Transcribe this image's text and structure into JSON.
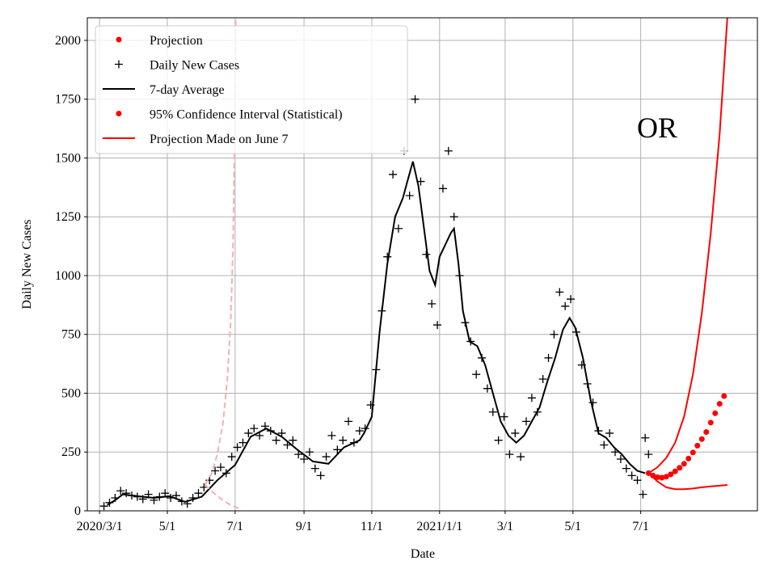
{
  "chart_data": {
    "type": "scatter-line",
    "xlabel": "Date",
    "ylabel": "Daily New Cases",
    "annotation": "OR",
    "xlim": [
      "2020-02-19",
      "2021-10-14"
    ],
    "xticks": [
      {
        "value": "2020-03-01",
        "label": "2020/3/1"
      },
      {
        "value": "2020-05-01",
        "label": "5/1"
      },
      {
        "value": "2020-07-01",
        "label": "7/1"
      },
      {
        "value": "2020-09-01",
        "label": "9/1"
      },
      {
        "value": "2020-11-01",
        "label": "11/1"
      },
      {
        "value": "2021-01-01",
        "label": "2021/1/1"
      },
      {
        "value": "2021-03-01",
        "label": "3/1"
      },
      {
        "value": "2021-05-01",
        "label": "5/1"
      },
      {
        "value": "2021-07-01",
        "label": "7/1"
      }
    ],
    "ylim": [
      0,
      2096
    ],
    "yticks": [
      0,
      250,
      500,
      750,
      1000,
      1250,
      1500,
      1750,
      2000
    ],
    "grid": true,
    "legend": "upper left",
    "series": [
      {
        "name": "Projection",
        "color": "#ff0000",
        "style": "dot",
        "x": [
          "2021-07-08",
          "2021-07-12",
          "2021-07-16",
          "2021-07-20",
          "2021-07-24",
          "2021-07-28",
          "2021-08-01",
          "2021-08-05",
          "2021-08-09",
          "2021-08-13",
          "2021-08-17",
          "2021-08-21",
          "2021-08-25",
          "2021-08-29",
          "2021-09-02",
          "2021-09-06",
          "2021-09-10",
          "2021-09-14"
        ],
        "values": [
          160,
          150,
          143,
          141,
          145,
          155,
          168,
          183,
          200,
          222,
          248,
          277,
          305,
          335,
          375,
          415,
          455,
          488
        ]
      },
      {
        "name": "Daily New Cases",
        "color": "#000000",
        "style": "plus",
        "x": [
          "2020-03-05",
          "2020-03-10",
          "2020-03-15",
          "2020-03-20",
          "2020-03-25",
          "2020-03-30",
          "2020-04-04",
          "2020-04-09",
          "2020-04-14",
          "2020-04-19",
          "2020-04-24",
          "2020-04-29",
          "2020-05-04",
          "2020-05-09",
          "2020-05-14",
          "2020-05-19",
          "2020-05-24",
          "2020-05-29",
          "2020-06-03",
          "2020-06-08",
          "2020-06-13",
          "2020-06-18",
          "2020-06-23",
          "2020-06-28",
          "2020-07-03",
          "2020-07-08",
          "2020-07-13",
          "2020-07-18",
          "2020-07-23",
          "2020-07-28",
          "2020-08-02",
          "2020-08-07",
          "2020-08-12",
          "2020-08-17",
          "2020-08-22",
          "2020-08-27",
          "2020-09-01",
          "2020-09-06",
          "2020-09-11",
          "2020-09-16",
          "2020-09-21",
          "2020-09-26",
          "2020-10-01",
          "2020-10-06",
          "2020-10-11",
          "2020-10-16",
          "2020-10-21",
          "2020-10-26",
          "2020-10-31",
          "2020-11-05",
          "2020-11-10",
          "2020-11-15",
          "2020-11-20",
          "2020-11-25",
          "2020-11-30",
          "2020-12-05",
          "2020-12-10",
          "2020-12-15",
          "2020-12-20",
          "2020-12-25",
          "2020-12-30",
          "2021-01-04",
          "2021-01-09",
          "2021-01-14",
          "2021-01-19",
          "2021-01-24",
          "2021-01-29",
          "2021-02-03",
          "2021-02-08",
          "2021-02-13",
          "2021-02-18",
          "2021-02-23",
          "2021-02-28",
          "2021-03-05",
          "2021-03-10",
          "2021-03-15",
          "2021-03-20",
          "2021-03-25",
          "2021-03-30",
          "2021-04-04",
          "2021-04-09",
          "2021-04-14",
          "2021-04-19",
          "2021-04-24",
          "2021-04-29",
          "2021-05-04",
          "2021-05-09",
          "2021-05-14",
          "2021-05-19",
          "2021-05-24",
          "2021-05-29",
          "2021-06-03",
          "2021-06-08",
          "2021-06-13",
          "2021-06-18",
          "2021-06-23",
          "2021-06-28",
          "2021-07-03",
          "2021-07-05",
          "2021-07-08"
        ],
        "values": [
          20,
          35,
          55,
          85,
          75,
          65,
          60,
          50,
          70,
          45,
          60,
          75,
          55,
          65,
          40,
          30,
          55,
          75,
          100,
          130,
          170,
          185,
          160,
          230,
          270,
          290,
          330,
          350,
          320,
          360,
          340,
          300,
          330,
          280,
          300,
          240,
          220,
          250,
          180,
          150,
          230,
          320,
          260,
          300,
          380,
          290,
          340,
          350,
          450,
          600,
          850,
          1080,
          1430,
          1200,
          1530,
          1340,
          1750,
          1400,
          1090,
          880,
          790,
          1370,
          1530,
          1250,
          1000,
          800,
          720,
          580,
          650,
          520,
          420,
          300,
          400,
          240,
          330,
          230,
          380,
          480,
          420,
          560,
          650,
          750,
          930,
          870,
          900,
          760,
          620,
          540,
          460,
          340,
          280,
          330,
          250,
          220,
          180,
          150,
          130,
          70,
          310,
          240
        ]
      },
      {
        "name": "7-day Average",
        "color": "#000000",
        "style": "line",
        "x": [
          "2020-03-08",
          "2020-03-15",
          "2020-03-22",
          "2020-04-05",
          "2020-04-19",
          "2020-05-03",
          "2020-05-17",
          "2020-06-01",
          "2020-06-15",
          "2020-07-01",
          "2020-07-15",
          "2020-07-29",
          "2020-08-12",
          "2020-08-26",
          "2020-09-09",
          "2020-09-23",
          "2020-10-07",
          "2020-10-21",
          "2020-10-25",
          "2020-11-01",
          "2020-11-08",
          "2020-11-15",
          "2020-11-22",
          "2020-11-29",
          "2020-12-03",
          "2020-12-08",
          "2020-12-13",
          "2020-12-18",
          "2020-12-23",
          "2020-12-28",
          "2021-01-01",
          "2021-01-06",
          "2021-01-11",
          "2021-01-14",
          "2021-01-18",
          "2021-01-22",
          "2021-01-28",
          "2021-02-04",
          "2021-02-11",
          "2021-02-18",
          "2021-02-25",
          "2021-03-04",
          "2021-03-11",
          "2021-03-18",
          "2021-03-25",
          "2021-04-01",
          "2021-04-08",
          "2021-04-15",
          "2021-04-22",
          "2021-04-28",
          "2021-05-03",
          "2021-05-10",
          "2021-05-17",
          "2021-05-24",
          "2021-05-31",
          "2021-06-07",
          "2021-06-14",
          "2021-06-21",
          "2021-06-28",
          "2021-07-05"
        ],
        "values": [
          25,
          45,
          70,
          62,
          55,
          62,
          38,
          60,
          130,
          195,
          315,
          350,
          315,
          260,
          210,
          200,
          270,
          300,
          330,
          400,
          760,
          1050,
          1250,
          1330,
          1400,
          1485,
          1380,
          1200,
          1020,
          960,
          1080,
          1130,
          1180,
          1200,
          1050,
          850,
          720,
          700,
          620,
          500,
          380,
          320,
          290,
          320,
          380,
          440,
          550,
          650,
          770,
          820,
          780,
          650,
          470,
          330,
          310,
          270,
          240,
          200,
          170,
          160
        ]
      },
      {
        "name": "95% Confidence Interval (Statistical)",
        "color": "#ff0000",
        "style": "dot",
        "x": [],
        "values": []
      },
      {
        "name": "Projection Made on June 7",
        "color": "#ff0000",
        "style": "line",
        "x": [
          "2021-07-08",
          "2021-07-16",
          "2021-07-24",
          "2021-08-01",
          "2021-08-09",
          "2021-08-17",
          "2021-08-25",
          "2021-09-02",
          "2021-09-10",
          "2021-09-17",
          "2021-09-20"
        ],
        "values": [
          160,
          185,
          225,
          290,
          400,
          580,
          840,
          1180,
          1600,
          2100,
          2350
        ]
      },
      {
        "color": "#ff0000",
        "style": "line",
        "x": [
          "2021-07-08",
          "2021-07-16",
          "2021-07-24",
          "2021-08-01",
          "2021-08-09",
          "2021-08-17",
          "2021-08-25",
          "2021-09-02",
          "2021-09-10",
          "2021-09-17"
        ],
        "values": [
          160,
          125,
          100,
          92,
          92,
          95,
          100,
          104,
          107,
          110
        ]
      },
      {
        "color": "#f7b0b0",
        "style": "dashed",
        "x": [
          "2020-06-04",
          "2020-06-10",
          "2020-06-15",
          "2020-06-20",
          "2020-06-24",
          "2020-06-27",
          "2020-06-29",
          "2020-07-01",
          "2020-07-02"
        ],
        "values": [
          110,
          160,
          240,
          370,
          560,
          800,
          1100,
          1700,
          2300
        ]
      },
      {
        "color": "#f7b0b0",
        "style": "dashed",
        "x": [
          "2020-06-04",
          "2020-06-12",
          "2020-06-20",
          "2020-06-28",
          "2020-07-05"
        ],
        "values": [
          110,
          75,
          45,
          22,
          10
        ]
      }
    ]
  }
}
